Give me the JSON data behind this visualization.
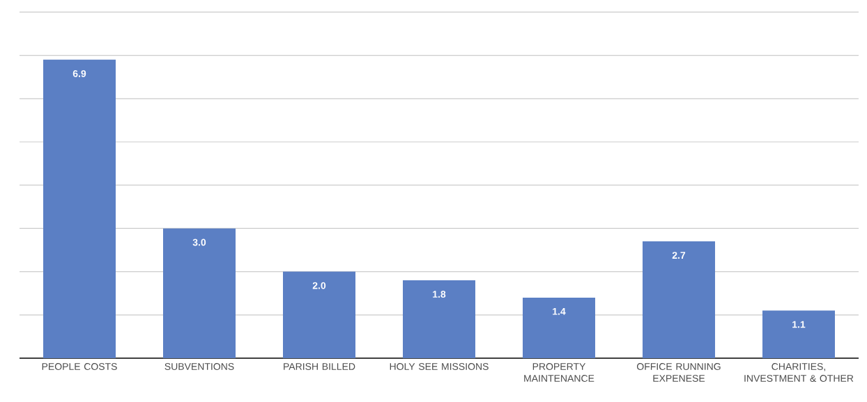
{
  "chart_data": {
    "type": "bar",
    "categories": [
      "PEOPLE COSTS",
      "SUBVENTIONS",
      "PARISH BILLED",
      "HOLY SEE MISSIONS",
      "PROPERTY MAINTENANCE",
      "OFFICE RUNNING EXPENESE",
      "CHARITIES, INVESTMENT & OTHER"
    ],
    "values": [
      6.9,
      3.0,
      2.0,
      1.8,
      1.4,
      2.7,
      1.1
    ],
    "value_labels": [
      "6.9",
      "3.0",
      "2.0",
      "1.8",
      "1.4",
      "2.7",
      "1.1"
    ],
    "color": "#5b7fc4",
    "tick_labels": "x",
    "grid": "y"
  }
}
